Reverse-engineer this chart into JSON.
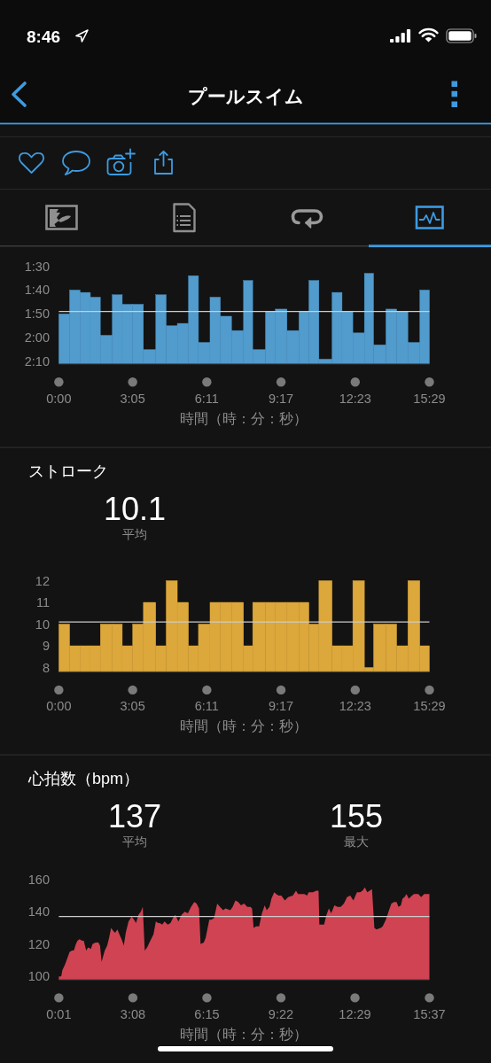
{
  "chart_data": [
    {
      "type": "other",
      "title": "プールスイム",
      "annotations": [
        "8:46"
      ]
    },
    {
      "type": "histogram",
      "xlabel": "時間（時：分：秒）",
      "color": "#519bcd",
      "bins": [
        0,
        27,
        53,
        79,
        104,
        134,
        159,
        185,
        212,
        243,
        269,
        297,
        325,
        350,
        379,
        405,
        433,
        463,
        486,
        518,
        543,
        572,
        602,
        627,
        652,
        685,
        710,
        737,
        766,
        789,
        820,
        847,
        875,
        905,
        929
      ],
      "base": [
        131,
        131,
        131,
        131,
        131,
        131,
        131,
        131,
        131,
        131,
        131,
        131,
        131,
        131,
        131,
        131,
        131,
        131,
        131,
        131,
        131,
        131,
        131,
        131,
        131,
        131,
        131,
        131,
        131,
        131,
        131,
        131,
        131,
        131
      ],
      "values": [
        -21,
        -31,
        -30,
        -28,
        -12,
        -29,
        -25,
        -25,
        -6,
        -29,
        -16,
        -17,
        -37,
        -9,
        -28,
        -20,
        -14,
        -35,
        -6,
        -22,
        -23,
        -14,
        -22,
        -35,
        -2,
        -30,
        -22,
        -13,
        -38,
        -8,
        -23,
        -22,
        -9,
        -31
      ],
      "xlim": [
        0,
        929
      ],
      "xticks": [
        {
          "value": 0,
          "label": "0:00"
        },
        {
          "value": 185,
          "label": "3:05"
        },
        {
          "value": 371,
          "label": "6:11"
        },
        {
          "value": 557,
          "label": "9:17"
        },
        {
          "value": 743,
          "label": "12:23"
        },
        {
          "value": 929,
          "label": "15:29"
        }
      ],
      "ylim": [
        131,
        90
      ],
      "yticks": [
        {
          "value": 90,
          "label": "1:30"
        },
        {
          "value": 100,
          "label": "1:40"
        },
        {
          "value": 110,
          "label": "1:50"
        },
        {
          "value": 120,
          "label": "2:00"
        },
        {
          "value": 130,
          "label": "2:10"
        }
      ],
      "ref_lines": [
        {
          "axis": "y",
          "value": 109,
          "color": "#cccccc"
        }
      ]
    },
    {
      "type": "histogram",
      "title": "ストローク",
      "annotations": [
        "10.1",
        "平均"
      ],
      "xlabel": "時間（時：分：秒）",
      "color": "#dca73b",
      "bins": [
        0,
        27,
        53,
        79,
        104,
        134,
        159,
        185,
        212,
        243,
        269,
        297,
        325,
        350,
        379,
        405,
        433,
        463,
        486,
        518,
        543,
        572,
        602,
        627,
        652,
        685,
        710,
        737,
        766,
        789,
        820,
        847,
        875,
        905,
        929
      ],
      "values": [
        10,
        9,
        9,
        9,
        10,
        10,
        9,
        10,
        11,
        9,
        12,
        11,
        9,
        10,
        11,
        11,
        11,
        9,
        11,
        11,
        11,
        11,
        11,
        10,
        12,
        9,
        9,
        12,
        8,
        10,
        10,
        9,
        12,
        9
      ],
      "xlim": [
        0,
        929
      ],
      "xticks": [
        {
          "value": 0,
          "label": "0:00"
        },
        {
          "value": 185,
          "label": "3:05"
        },
        {
          "value": 371,
          "label": "6:11"
        },
        {
          "value": 557,
          "label": "9:17"
        },
        {
          "value": 743,
          "label": "12:23"
        },
        {
          "value": 929,
          "label": "15:29"
        }
      ],
      "ylim": [
        7.8,
        12
      ],
      "yticks": [
        8,
        9,
        10,
        11,
        12
      ],
      "ref_lines": [
        {
          "axis": "y",
          "value": 10.1,
          "color": "#cccccc"
        }
      ]
    },
    {
      "type": "area",
      "title": "心拍数（bpm）",
      "annotations": [
        "137",
        "平均",
        "155",
        "最大"
      ],
      "xlabel": "時間（時：分：秒）",
      "color": "#d04352",
      "x": [
        1,
        7,
        10,
        16,
        22,
        28,
        34,
        39,
        44,
        48,
        53,
        60,
        64,
        70,
        75,
        82,
        86,
        94,
        101,
        105,
        109,
        117,
        123,
        128,
        133,
        139,
        143,
        149,
        154,
        161,
        165,
        170,
        177,
        185,
        191,
        196,
        202,
        208,
        213,
        218,
        224,
        232,
        240,
        246,
        252,
        256,
        262,
        268,
        276,
        283,
        289,
        295,
        303,
        311,
        319,
        327,
        335,
        343,
        349,
        355,
        359,
        367,
        372,
        381,
        386,
        393,
        401,
        408,
        416,
        422,
        434,
        440,
        447,
        454,
        461,
        469,
        477,
        485,
        489,
        493,
        499,
        507,
        514,
        521,
        526,
        533,
        538,
        545,
        550,
        556,
        563,
        572,
        580,
        592,
        600,
        605,
        613,
        621,
        628,
        632,
        643,
        651,
        657,
        659,
        665,
        671,
        677,
        683,
        689,
        697,
        705,
        713,
        721,
        729,
        737,
        745,
        754,
        762,
        768,
        774,
        780,
        786,
        792,
        798,
        803,
        814,
        819,
        827,
        835,
        841,
        848,
        854,
        859,
        865,
        869,
        874,
        879,
        885,
        893,
        898,
        909,
        916,
        924,
        937
      ],
      "values": [
        100,
        100,
        104,
        107,
        111,
        115,
        116,
        116,
        120,
        122,
        123,
        122,
        122,
        116,
        118,
        117,
        120,
        121,
        121,
        119,
        109,
        116,
        119,
        124,
        130,
        128,
        127,
        129,
        126,
        122,
        119,
        127,
        134,
        137,
        135,
        133,
        138,
        140,
        143,
        116,
        118,
        122,
        126,
        134,
        133,
        133,
        132,
        134,
        132,
        133,
        136,
        138,
        134,
        138,
        140,
        139,
        143,
        146,
        145,
        142,
        120,
        121,
        124,
        135,
        135,
        136,
        145,
        143,
        141,
        142,
        141,
        143,
        147,
        146,
        144,
        145,
        143,
        143,
        142,
        130,
        131,
        131,
        139,
        144,
        141,
        143,
        148,
        152,
        151,
        150,
        150,
        147,
        149,
        150,
        153,
        151,
        151,
        151,
        150,
        152,
        152,
        153,
        153,
        132,
        132,
        132,
        138,
        142,
        139,
        144,
        143,
        143,
        145,
        149,
        150,
        147,
        152,
        152,
        153,
        155,
        152,
        153,
        154,
        130,
        129,
        130,
        131,
        135,
        141,
        145,
        146,
        146,
        143,
        144,
        148,
        149,
        151,
        148,
        150,
        151,
        151,
        149,
        151,
        151
      ],
      "xlim": [
        1,
        937
      ],
      "xticks": [
        {
          "value": 1,
          "label": "0:01"
        },
        {
          "value": 188,
          "label": "3:08"
        },
        {
          "value": 375,
          "label": "6:15"
        },
        {
          "value": 562,
          "label": "9:22"
        },
        {
          "value": 749,
          "label": "12:29"
        },
        {
          "value": 937,
          "label": "15:37"
        }
      ],
      "ylim": [
        98,
        160
      ],
      "yticks": [
        100,
        120,
        140,
        160
      ],
      "ref_lines": [
        {
          "axis": "y",
          "value": 137,
          "color": "#cccccc"
        }
      ]
    }
  ]
}
